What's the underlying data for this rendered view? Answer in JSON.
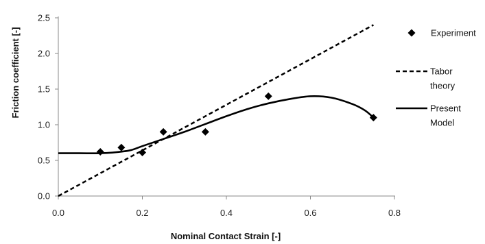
{
  "chart_data": {
    "type": "scatter",
    "title": "",
    "xlabel": "Nominal Contact Strain [-]",
    "ylabel": "Friction coefficient [-]",
    "xlim": [
      0.0,
      0.8
    ],
    "ylim": [
      0.0,
      2.5
    ],
    "x_ticks": [
      "0.0",
      "0.2",
      "0.4",
      "0.6",
      "0.8"
    ],
    "y_ticks": [
      "0.0",
      "0.5",
      "1.0",
      "1.5",
      "2.0",
      "2.5"
    ],
    "grid": false,
    "legend_position": "right",
    "series": [
      {
        "name": "Experiment",
        "style": "diamond-markers",
        "color": "#000000",
        "points": [
          {
            "x": 0.1,
            "y": 0.62
          },
          {
            "x": 0.15,
            "y": 0.68
          },
          {
            "x": 0.2,
            "y": 0.61
          },
          {
            "x": 0.25,
            "y": 0.9
          },
          {
            "x": 0.35,
            "y": 0.9
          },
          {
            "x": 0.5,
            "y": 1.4
          },
          {
            "x": 0.75,
            "y": 1.1
          }
        ]
      },
      {
        "name": "Tabor theory",
        "legend_lines": [
          "Tabor",
          "theory"
        ],
        "style": "dashed-line",
        "color": "#000000",
        "points": [
          {
            "x": 0.0,
            "y": 0.0
          },
          {
            "x": 0.75,
            "y": 2.4
          }
        ]
      },
      {
        "name": "Present Model",
        "legend_lines": [
          "Present",
          "Model"
        ],
        "style": "solid-line",
        "color": "#000000",
        "points": [
          {
            "x": 0.0,
            "y": 0.6
          },
          {
            "x": 0.05,
            "y": 0.6
          },
          {
            "x": 0.1,
            "y": 0.6
          },
          {
            "x": 0.13,
            "y": 0.61
          },
          {
            "x": 0.17,
            "y": 0.64
          },
          {
            "x": 0.2,
            "y": 0.7
          },
          {
            "x": 0.25,
            "y": 0.8
          },
          {
            "x": 0.3,
            "y": 0.9
          },
          {
            "x": 0.35,
            "y": 1.01
          },
          {
            "x": 0.4,
            "y": 1.12
          },
          {
            "x": 0.45,
            "y": 1.22
          },
          {
            "x": 0.5,
            "y": 1.3
          },
          {
            "x": 0.55,
            "y": 1.36
          },
          {
            "x": 0.6,
            "y": 1.4
          },
          {
            "x": 0.65,
            "y": 1.38
          },
          {
            "x": 0.7,
            "y": 1.29
          },
          {
            "x": 0.73,
            "y": 1.2
          },
          {
            "x": 0.75,
            "y": 1.1
          }
        ]
      }
    ]
  }
}
